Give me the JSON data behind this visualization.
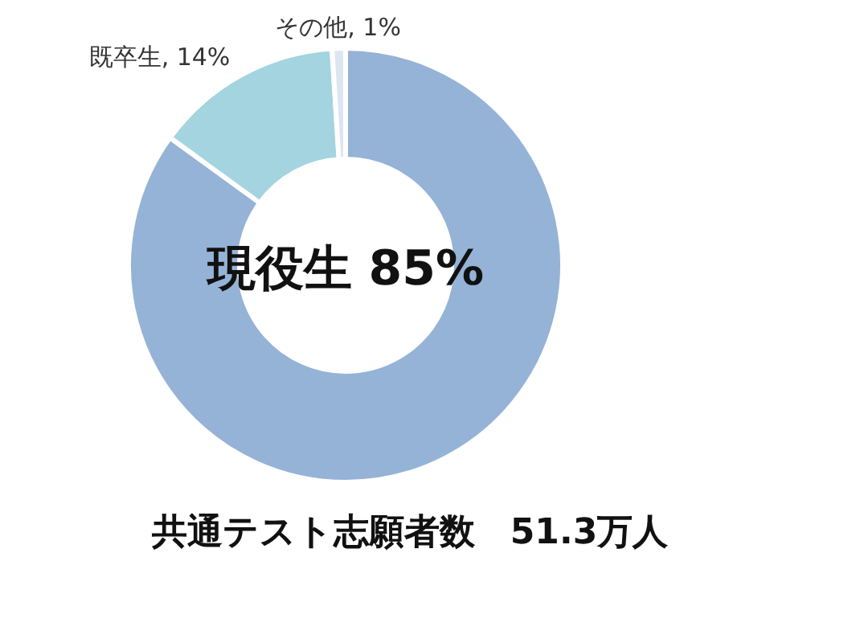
{
  "chart_data": {
    "type": "donut",
    "title": "共通テスト志願者数　51.3万人",
    "categories": [
      "現役生",
      "既卒生",
      "その他"
    ],
    "values": [
      85,
      14,
      1
    ],
    "colors": [
      "#95b3d7",
      "#a3d4e0",
      "#dce6f1"
    ],
    "value_labels": [
      "85%",
      "14%",
      "1%"
    ]
  }
}
